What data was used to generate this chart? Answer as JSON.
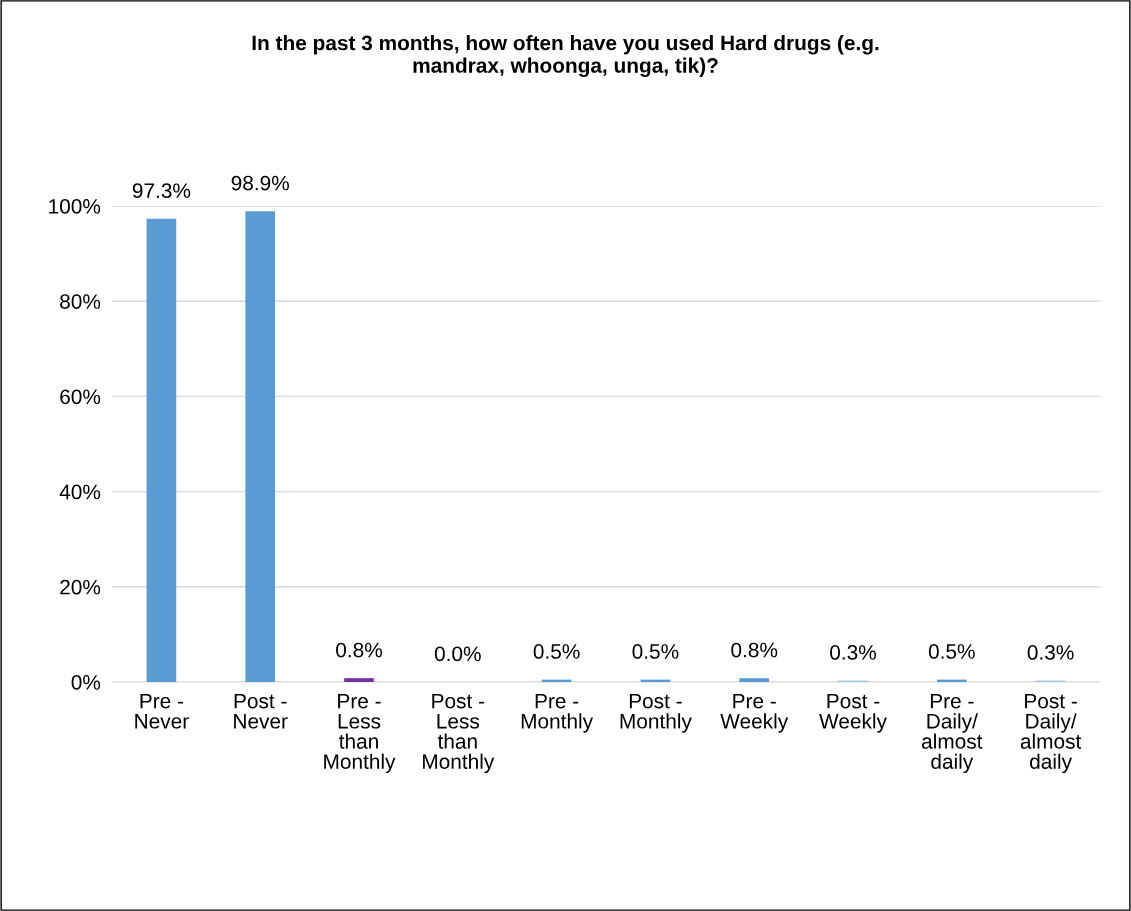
{
  "chart_data": {
    "type": "bar",
    "title": "In the past 3 months, how often have you used Hard drugs (e.g.\nmandrax, whoonga, unga, tik)?",
    "categories": [
      "Pre -\nNever",
      "Post -\nNever",
      "Pre -\nLess\nthan\nMonthly",
      "Post -\nLess\nthan\nMonthly",
      "Pre -\nMonthly",
      "Post -\nMonthly",
      "Pre -\nWeekly",
      "Post -\nWeekly",
      "Pre -\nDaily/\nalmost\ndaily",
      "Post -\nDaily/\nalmost\ndaily"
    ],
    "values": [
      97.3,
      98.9,
      0.8,
      0.0,
      0.5,
      0.5,
      0.8,
      0.3,
      0.5,
      0.3
    ],
    "value_labels": [
      "97.3%",
      "98.9%",
      "0.8%",
      "0.0%",
      "0.5%",
      "0.5%",
      "0.8%",
      "0.3%",
      "0.5%",
      "0.3%"
    ],
    "colors": [
      "#5b9bd5",
      "#5b9bd5",
      "#7030a0",
      "#5b9bd5",
      "#5b9bd5",
      "#5b9bd5",
      "#5b9bd5",
      "#9dc3e6",
      "#5b9bd5",
      "#9dc3e6"
    ],
    "ylim": [
      0,
      100
    ],
    "yticks": [
      {
        "value": 0,
        "label": "0%"
      },
      {
        "value": 20,
        "label": "20%"
      },
      {
        "value": 40,
        "label": "40%"
      },
      {
        "value": 60,
        "label": "60%"
      },
      {
        "value": 80,
        "label": "80%"
      },
      {
        "value": 100,
        "label": "100%"
      }
    ],
    "grid": "y",
    "legend": false
  }
}
